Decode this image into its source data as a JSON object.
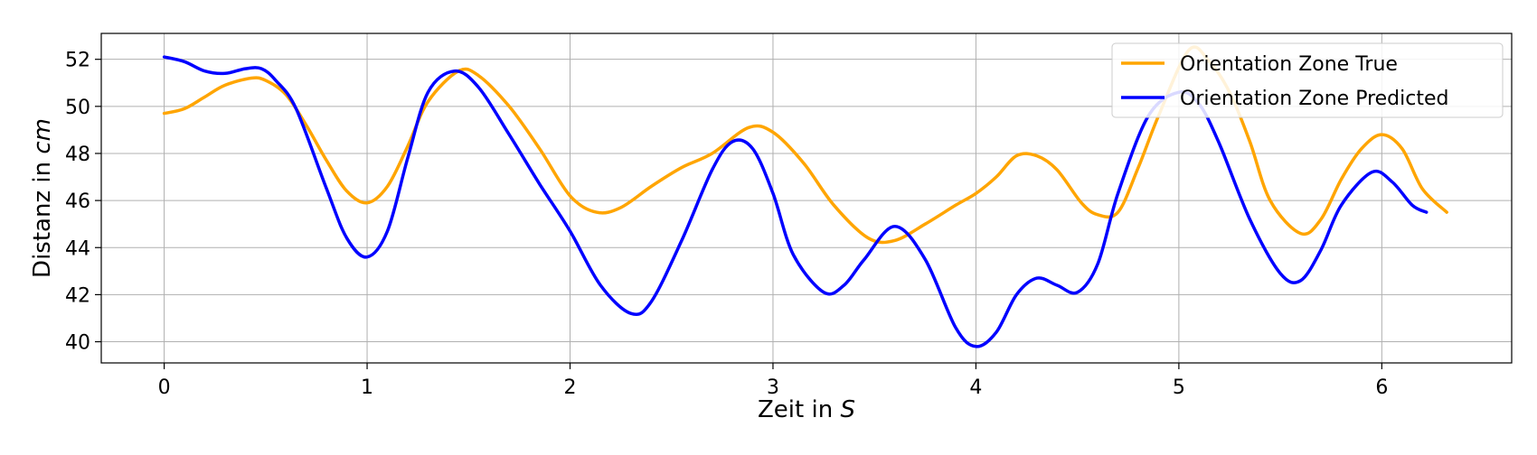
{
  "chart_data": {
    "type": "line",
    "title": "",
    "xlabel": "Zeit in ",
    "xlabel_var": "S",
    "ylabel": "Distanz in ",
    "ylabel_var": "cm",
    "xlim": [
      -0.31,
      6.64
    ],
    "ylim": [
      39.1,
      53.1
    ],
    "xticks": [
      0,
      1,
      2,
      3,
      4,
      5,
      6
    ],
    "yticks": [
      40,
      42,
      44,
      46,
      48,
      50,
      52
    ],
    "grid": true,
    "legend_position": "top-right",
    "series": [
      {
        "name": "Orientation Zone True",
        "color": "#FFA500",
        "x": [
          0,
          0.1,
          0.2,
          0.3,
          0.43,
          0.5,
          0.6,
          0.7,
          0.8,
          0.9,
          1.0,
          1.1,
          1.2,
          1.3,
          1.45,
          1.55,
          1.7,
          1.85,
          2.0,
          2.13,
          2.25,
          2.4,
          2.55,
          2.7,
          2.88,
          3.0,
          3.15,
          3.3,
          3.47,
          3.6,
          3.75,
          3.9,
          4.0,
          4.1,
          4.2,
          4.3,
          4.4,
          4.52,
          4.6,
          4.7,
          4.8,
          4.9,
          5.05,
          5.15,
          5.25,
          5.35,
          5.45,
          5.6,
          5.7,
          5.8,
          5.9,
          6.0,
          6.1,
          6.2,
          6.32
        ],
        "values": [
          49.7,
          49.9,
          50.4,
          50.9,
          51.2,
          51.1,
          50.5,
          49.2,
          47.7,
          46.4,
          45.9,
          46.6,
          48.3,
          50.2,
          51.5,
          51.3,
          50.0,
          48.2,
          46.2,
          45.5,
          45.7,
          46.6,
          47.4,
          48.0,
          49.1,
          48.9,
          47.6,
          45.8,
          44.4,
          44.3,
          45.0,
          45.8,
          46.3,
          47.0,
          47.9,
          47.9,
          47.3,
          45.9,
          45.4,
          45.5,
          47.4,
          49.6,
          52.4,
          51.9,
          50.6,
          48.5,
          46.0,
          44.6,
          45.2,
          46.9,
          48.2,
          48.8,
          48.2,
          46.5,
          45.5
        ]
      },
      {
        "name": "Orientation Zone Predicted",
        "color": "#0000FF",
        "x": [
          0,
          0.1,
          0.2,
          0.3,
          0.4,
          0.48,
          0.55,
          0.65,
          0.8,
          0.9,
          1.0,
          1.1,
          1.2,
          1.3,
          1.43,
          1.55,
          1.7,
          1.85,
          2.0,
          2.15,
          2.3,
          2.4,
          2.55,
          2.7,
          2.8,
          2.9,
          3.0,
          3.1,
          3.25,
          3.35,
          3.45,
          3.6,
          3.75,
          3.9,
          4.0,
          4.1,
          4.2,
          4.3,
          4.4,
          4.5,
          4.6,
          4.7,
          4.85,
          5.0,
          5.1,
          5.2,
          5.35,
          5.5,
          5.6,
          5.7,
          5.8,
          5.95,
          6.05,
          6.15,
          6.22
        ],
        "values": [
          52.1,
          51.9,
          51.5,
          51.4,
          51.6,
          51.6,
          51.1,
          49.9,
          46.5,
          44.4,
          43.6,
          44.7,
          47.8,
          50.6,
          51.5,
          50.8,
          48.8,
          46.7,
          44.7,
          42.4,
          41.2,
          41.7,
          44.3,
          47.3,
          48.5,
          48.2,
          46.3,
          43.7,
          42.1,
          42.4,
          43.5,
          44.9,
          43.5,
          40.6,
          39.8,
          40.4,
          42.0,
          42.7,
          42.4,
          42.1,
          43.3,
          46.3,
          49.6,
          50.6,
          50.1,
          48.4,
          45.2,
          42.9,
          42.6,
          43.9,
          45.8,
          47.2,
          46.8,
          45.8,
          45.5
        ]
      }
    ]
  }
}
